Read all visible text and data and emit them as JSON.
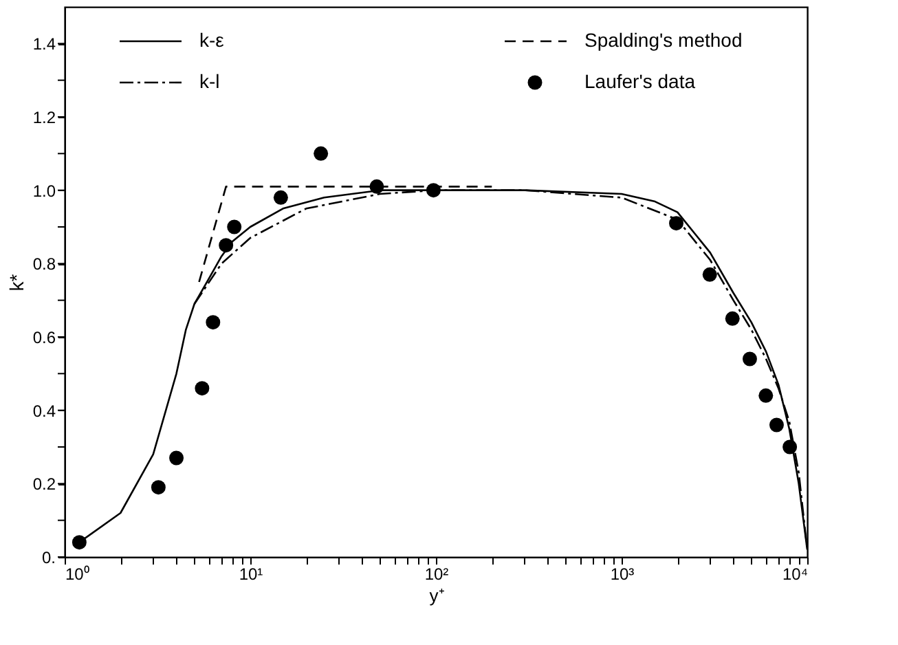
{
  "chart_data": {
    "type": "line",
    "xlabel": "y⁺",
    "ylabel": "k*",
    "log": "x",
    "grid": false,
    "legend": "top",
    "xlim": [
      1,
      10000
    ],
    "ylim": [
      0,
      1.5
    ],
    "xticks": [
      {
        "value": 1,
        "label": "10⁰"
      },
      {
        "value": 2,
        "label": null
      },
      {
        "value": 3,
        "label": null
      },
      {
        "value": 4,
        "label": null
      },
      {
        "value": 5,
        "label": null
      },
      {
        "value": 6,
        "label": null
      },
      {
        "value": 7,
        "label": null
      },
      {
        "value": 8,
        "label": null
      },
      {
        "value": 9,
        "label": null
      },
      {
        "value": 10,
        "label": "10¹"
      },
      {
        "value": 20,
        "label": null
      },
      {
        "value": 30,
        "label": null
      },
      {
        "value": 40,
        "label": null
      },
      {
        "value": 50,
        "label": null
      },
      {
        "value": 60,
        "label": null
      },
      {
        "value": 70,
        "label": null
      },
      {
        "value": 80,
        "label": null
      },
      {
        "value": 90,
        "label": null
      },
      {
        "value": 100,
        "label": "10²"
      },
      {
        "value": 200,
        "label": null
      },
      {
        "value": 300,
        "label": null
      },
      {
        "value": 400,
        "label": null
      },
      {
        "value": 500,
        "label": null
      },
      {
        "value": 600,
        "label": null
      },
      {
        "value": 700,
        "label": null
      },
      {
        "value": 800,
        "label": null
      },
      {
        "value": 900,
        "label": null
      },
      {
        "value": 1000,
        "label": "10³"
      },
      {
        "value": 2000,
        "label": null
      },
      {
        "value": 3000,
        "label": null
      },
      {
        "value": 4000,
        "label": null
      },
      {
        "value": 5000,
        "label": null
      },
      {
        "value": 6000,
        "label": null
      },
      {
        "value": 7000,
        "label": null
      },
      {
        "value": 8000,
        "label": null
      },
      {
        "value": 9000,
        "label": null
      },
      {
        "value": 10000,
        "label": "10⁴"
      }
    ],
    "yticks": [
      {
        "value": 0,
        "label": "0."
      },
      {
        "value": 0.1,
        "label": null
      },
      0.2,
      {
        "value": 0.3,
        "label": null
      },
      0.4,
      {
        "value": 0.5,
        "label": null
      },
      0.6,
      {
        "value": 0.7,
        "label": null
      },
      0.8,
      {
        "value": 0.9,
        "label": null
      },
      {
        "value": 1,
        "label": "1.0"
      },
      {
        "value": 1.1,
        "label": null
      },
      1.2,
      {
        "value": 1.3,
        "label": null
      },
      1.4
    ],
    "series": [
      {
        "name": "k-ε",
        "type": "line",
        "line_style": "solid",
        "color": "#000000",
        "x": [
          1.2,
          2,
          3,
          4,
          4.5,
          5,
          6,
          7,
          8,
          10,
          15,
          25,
          50,
          100,
          300,
          1000,
          1500,
          2000,
          3000,
          4000,
          5000,
          6000,
          7000,
          8000,
          9000,
          10000
        ],
        "values": [
          0.04,
          0.12,
          0.28,
          0.5,
          0.62,
          0.69,
          0.76,
          0.82,
          0.86,
          0.9,
          0.95,
          0.98,
          1.0,
          1.0,
          1.0,
          0.99,
          0.97,
          0.94,
          0.83,
          0.72,
          0.64,
          0.56,
          0.47,
          0.35,
          0.2,
          0.02
        ]
      },
      {
        "name": "k-l",
        "type": "line",
        "line_style": "dotted",
        "color": "#000000",
        "x": [
          5,
          7,
          10,
          20,
          50,
          100,
          300,
          1000,
          2000,
          3000,
          4000,
          5000,
          6000,
          7000,
          8000,
          9000,
          10000
        ],
        "values": [
          0.69,
          0.8,
          0.87,
          0.95,
          0.99,
          1.0,
          1.0,
          0.98,
          0.92,
          0.81,
          0.7,
          0.62,
          0.54,
          0.46,
          0.37,
          0.23,
          0.02
        ]
      },
      {
        "name": "Spalding's method",
        "type": "line",
        "line_style": "dashed",
        "color": "#000000",
        "x": [
          5.3,
          7.4,
          200
        ],
        "values": [
          0.75,
          1.01,
          1.01
        ]
      },
      {
        "name": "Laufer's data",
        "type": "scatter",
        "marker": "circle",
        "color": "#000000",
        "x": [
          1.2,
          3.2,
          4,
          5.5,
          6.3,
          7.4,
          8.2,
          14.6,
          24,
          48,
          97,
          1970,
          2985,
          3955,
          4905,
          5985,
          6840,
          8055
        ],
        "values": [
          0.04,
          0.19,
          0.27,
          0.46,
          0.64,
          0.85,
          0.9,
          0.98,
          1.1,
          1.01,
          1.0,
          0.91,
          0.77,
          0.65,
          0.54,
          0.44,
          0.36,
          0.3
        ]
      }
    ]
  }
}
